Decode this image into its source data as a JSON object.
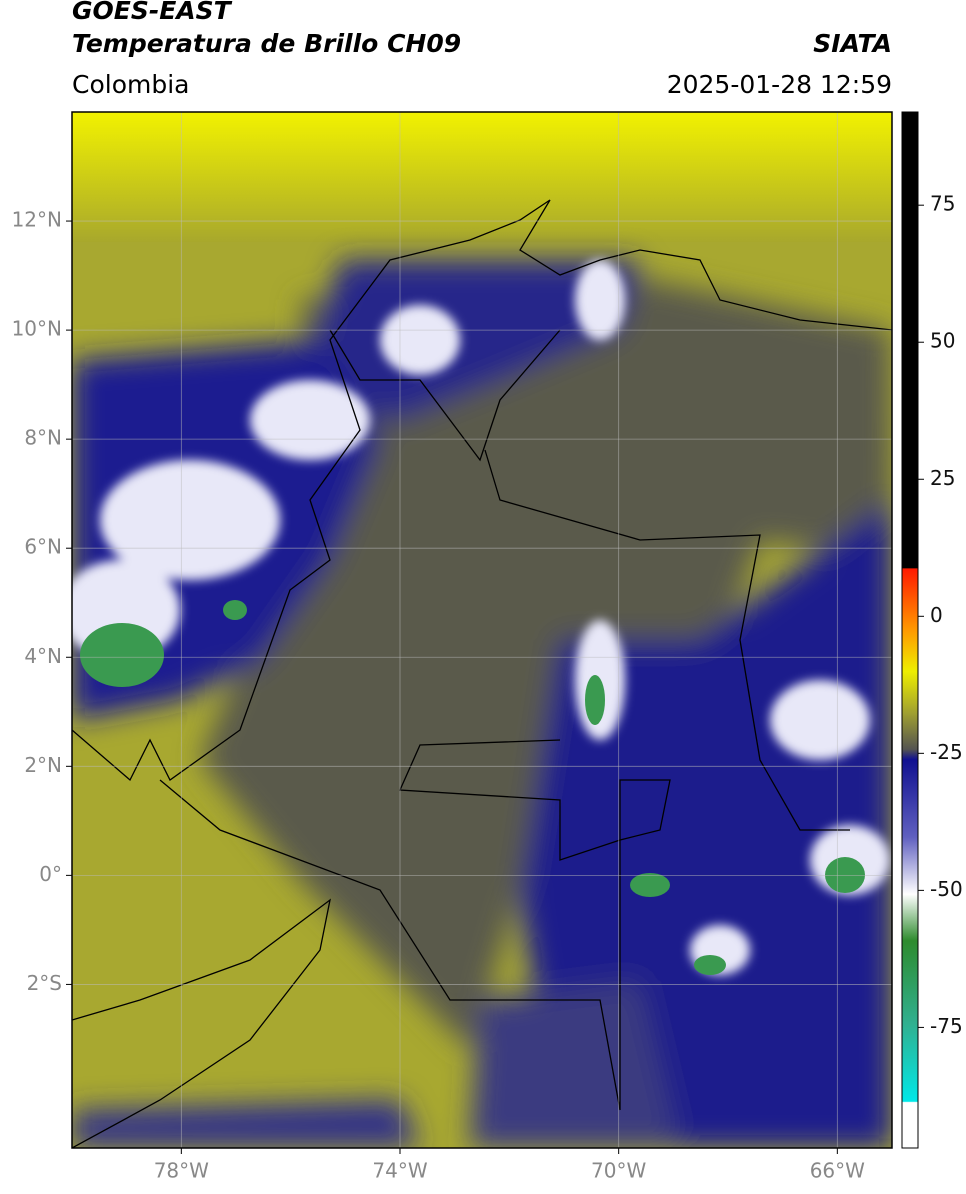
{
  "header": {
    "title": "GOES-EAST",
    "subtitle": "Temperatura de Brillo CH09",
    "source": "SIATA",
    "region": "Colombia",
    "datetime": "2025-01-28 12:59"
  },
  "map": {
    "xlim": [
      -80,
      -65
    ],
    "ylim": [
      -5,
      14
    ],
    "grid": true,
    "xticks": [
      {
        "value": -78,
        "label": "78°W"
      },
      {
        "value": -74,
        "label": "74°W"
      },
      {
        "value": -70,
        "label": "70°W"
      },
      {
        "value": -66,
        "label": "66°W"
      }
    ],
    "yticks": [
      {
        "value": 12,
        "label": "12°N"
      },
      {
        "value": 10,
        "label": "10°N"
      },
      {
        "value": 8,
        "label": "8°N"
      },
      {
        "value": 6,
        "label": "6°N"
      },
      {
        "value": 4,
        "label": "4°N"
      },
      {
        "value": 2,
        "label": "2°N"
      },
      {
        "value": 0,
        "label": "0°"
      },
      {
        "value": -2,
        "label": "2°S"
      }
    ]
  },
  "colorbar": {
    "lim": [
      -97,
      92
    ],
    "ticks": [
      75,
      50,
      25,
      0,
      -25,
      -50,
      -75
    ]
  }
}
